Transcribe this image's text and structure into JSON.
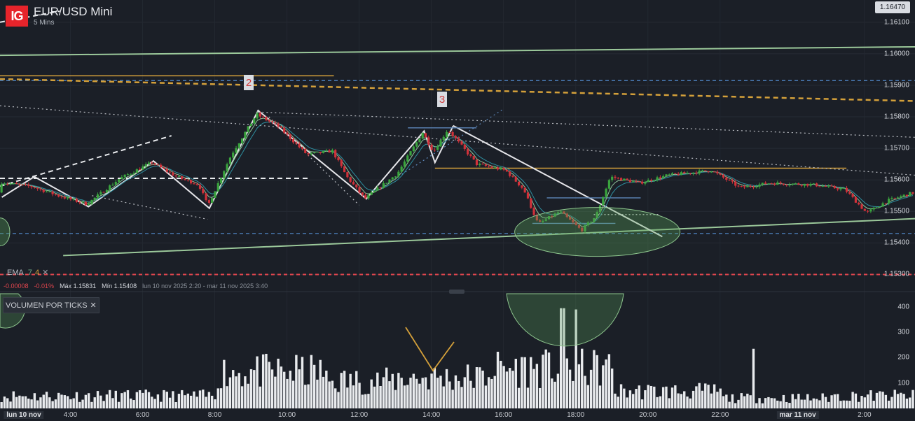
{
  "header": {
    "logo": "IG",
    "instrument": "EUR/USD Mini",
    "timeframe": "5 Mins"
  },
  "current_price": "1.16470",
  "indicators": {
    "ema_label": "EMA",
    "ema_fast": "7",
    "ema_slow": "4",
    "remove": "✕"
  },
  "stats": {
    "change": "-0.00008",
    "change_pct": "-0.01%",
    "max_label": "Máx 1.15831",
    "min_label": "Mín 1.15408",
    "range": "lun 10 nov 2025 2:20 - mar 11 nov 2025 3:40"
  },
  "volume_panel": {
    "title": "VOLUMEN POR TICKS",
    "close": "✕"
  },
  "wave_labels": [
    "2",
    "3"
  ],
  "colors": {
    "background": "#1b1f27",
    "up": "#3aa43e",
    "down": "#d0313a",
    "trendline": "#9bc89a",
    "orange": "#d4a03a",
    "blue_dashed": "#4f86c6",
    "red_dashed": "#e0454d",
    "zigzag": "#e6e6ea",
    "ellipse": "#5aa05a"
  },
  "chart_data": {
    "type": "candlestick",
    "title": "EUR/USD Mini",
    "timeframe": "5 Mins",
    "price_axis": {
      "range": [
        1.1529,
        1.16135
      ],
      "ticks": [
        "1.16100",
        "1.16000",
        "1.15900",
        "1.15800",
        "1.15700",
        "1.15600",
        "1.15500",
        "1.15400",
        "1.15300"
      ]
    },
    "volume_axis": {
      "range": [
        0,
        430
      ],
      "ticks": [
        "400",
        "300",
        "200",
        "100"
      ]
    },
    "time_axis": {
      "ticks": [
        {
          "label": "lun 10 nov",
          "hour": 2.3,
          "day": true
        },
        {
          "label": "4:00",
          "hour": 4
        },
        {
          "label": "6:00",
          "hour": 6
        },
        {
          "label": "8:00",
          "hour": 8
        },
        {
          "label": "10:00",
          "hour": 10
        },
        {
          "label": "12:00",
          "hour": 12
        },
        {
          "label": "14:00",
          "hour": 14
        },
        {
          "label": "16:00",
          "hour": 16
        },
        {
          "label": "18:00",
          "hour": 18
        },
        {
          "label": "20:00",
          "hour": 20
        },
        {
          "label": "22:00",
          "hour": 22
        },
        {
          "label": "mar 11 nov",
          "hour": 24.15,
          "day": true
        },
        {
          "label": "2:00",
          "hour": 26
        }
      ],
      "hour_range": [
        2.05,
        27.4
      ]
    },
    "price_path": [
      [
        2.1,
        1.15592
      ],
      [
        3.0,
        1.15578
      ],
      [
        3.7,
        1.1555
      ],
      [
        4.5,
        1.15523
      ],
      [
        5.4,
        1.15604
      ],
      [
        6.3,
        1.15655
      ],
      [
        7.0,
        1.15609
      ],
      [
        7.6,
        1.15585
      ],
      [
        7.85,
        1.15518
      ],
      [
        8.5,
        1.1568
      ],
      [
        9.2,
        1.15808
      ],
      [
        9.8,
        1.1577
      ],
      [
        10.6,
        1.1568
      ],
      [
        11.3,
        1.15692
      ],
      [
        11.7,
        1.1561
      ],
      [
        12.2,
        1.1554
      ],
      [
        13.1,
        1.1562
      ],
      [
        13.8,
        1.1575
      ],
      [
        14.1,
        1.1569
      ],
      [
        14.5,
        1.1576
      ],
      [
        15.3,
        1.1565
      ],
      [
        16.1,
        1.1563
      ],
      [
        16.6,
        1.1557
      ],
      [
        17.0,
        1.1546
      ],
      [
        17.6,
        1.155
      ],
      [
        18.2,
        1.1544
      ],
      [
        18.6,
        1.15485
      ],
      [
        19.0,
        1.1561
      ],
      [
        19.8,
        1.1559
      ],
      [
        20.6,
        1.15615
      ],
      [
        21.8,
        1.1563
      ],
      [
        22.6,
        1.15575
      ],
      [
        23.4,
        1.1559
      ],
      [
        24.6,
        1.15585
      ],
      [
        25.5,
        1.1557
      ],
      [
        26.1,
        1.15495
      ],
      [
        26.7,
        1.15535
      ],
      [
        27.4,
        1.1556
      ]
    ],
    "annotations": {
      "max": 1.15831,
      "min": 1.15408,
      "wave_points": [
        {
          "label": "2",
          "hour": 9.2,
          "price": 1.15875
        },
        {
          "label": "3",
          "hour": 14.55,
          "price": 1.15832
        }
      ],
      "horizontal_levels": [
        {
          "price": 1.15915,
          "style": "blue-dashed"
        },
        {
          "price": 1.1543,
          "style": "blue-dashed"
        },
        {
          "price": 1.153,
          "style": "red-dashed"
        },
        {
          "price": 1.15637,
          "style": "orange",
          "from_hour": 14.1,
          "to_hour": 25.5
        }
      ]
    }
  }
}
